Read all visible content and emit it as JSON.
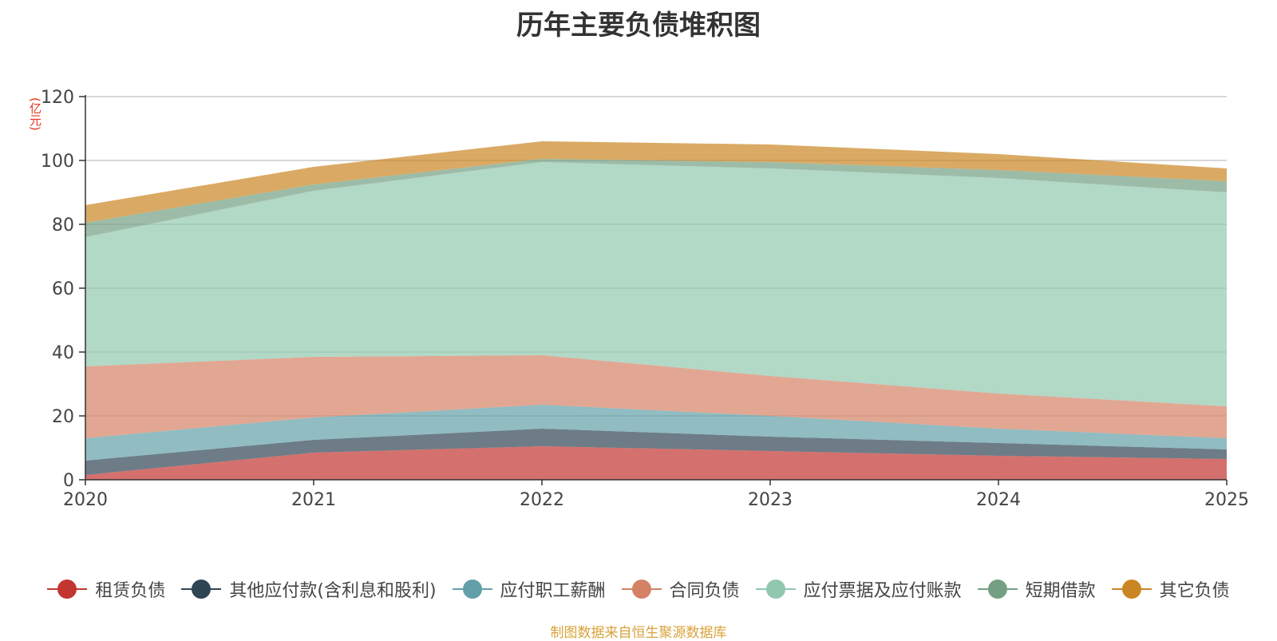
{
  "chart_data": {
    "type": "area",
    "stacked": true,
    "title": "历年主要负债堆积图",
    "unit_label": "(亿元)",
    "x": [
      "2020",
      "2021",
      "2022",
      "2023",
      "2024",
      "2025"
    ],
    "ylim": [
      0,
      120
    ],
    "yticks": [
      0,
      20,
      40,
      60,
      80,
      100,
      120
    ],
    "grid": true,
    "legend_position": "bottom",
    "series": [
      {
        "name": "租赁负债",
        "color": "#c23531",
        "values": [
          1.5,
          8.5,
          10.5,
          9.0,
          7.5,
          6.5
        ]
      },
      {
        "name": "其他应付款(含利息和股利)",
        "color": "#2f4554",
        "values": [
          4.5,
          4.0,
          5.5,
          4.5,
          4.0,
          3.0
        ]
      },
      {
        "name": "应付职工薪酬",
        "color": "#61a0a8",
        "values": [
          7.0,
          7.0,
          7.5,
          6.5,
          4.5,
          3.5
        ]
      },
      {
        "name": "合同负债",
        "color": "#d48265",
        "values": [
          22.5,
          19.0,
          15.5,
          12.5,
          11.0,
          10.0
        ]
      },
      {
        "name": "应付票据及应付账款",
        "color": "#91c7ae",
        "values": [
          40.5,
          52.0,
          60.5,
          65.0,
          67.5,
          67.0
        ]
      },
      {
        "name": "短期借款",
        "color": "#749f83",
        "values": [
          4.5,
          2.0,
          1.0,
          2.0,
          2.5,
          3.5
        ]
      },
      {
        "name": "其它负债",
        "color": "#ca8622",
        "values": [
          5.5,
          5.5,
          5.5,
          5.5,
          5.0,
          4.0
        ]
      }
    ]
  },
  "footer": {
    "source": "制图数据来自恒生聚源数据库"
  }
}
